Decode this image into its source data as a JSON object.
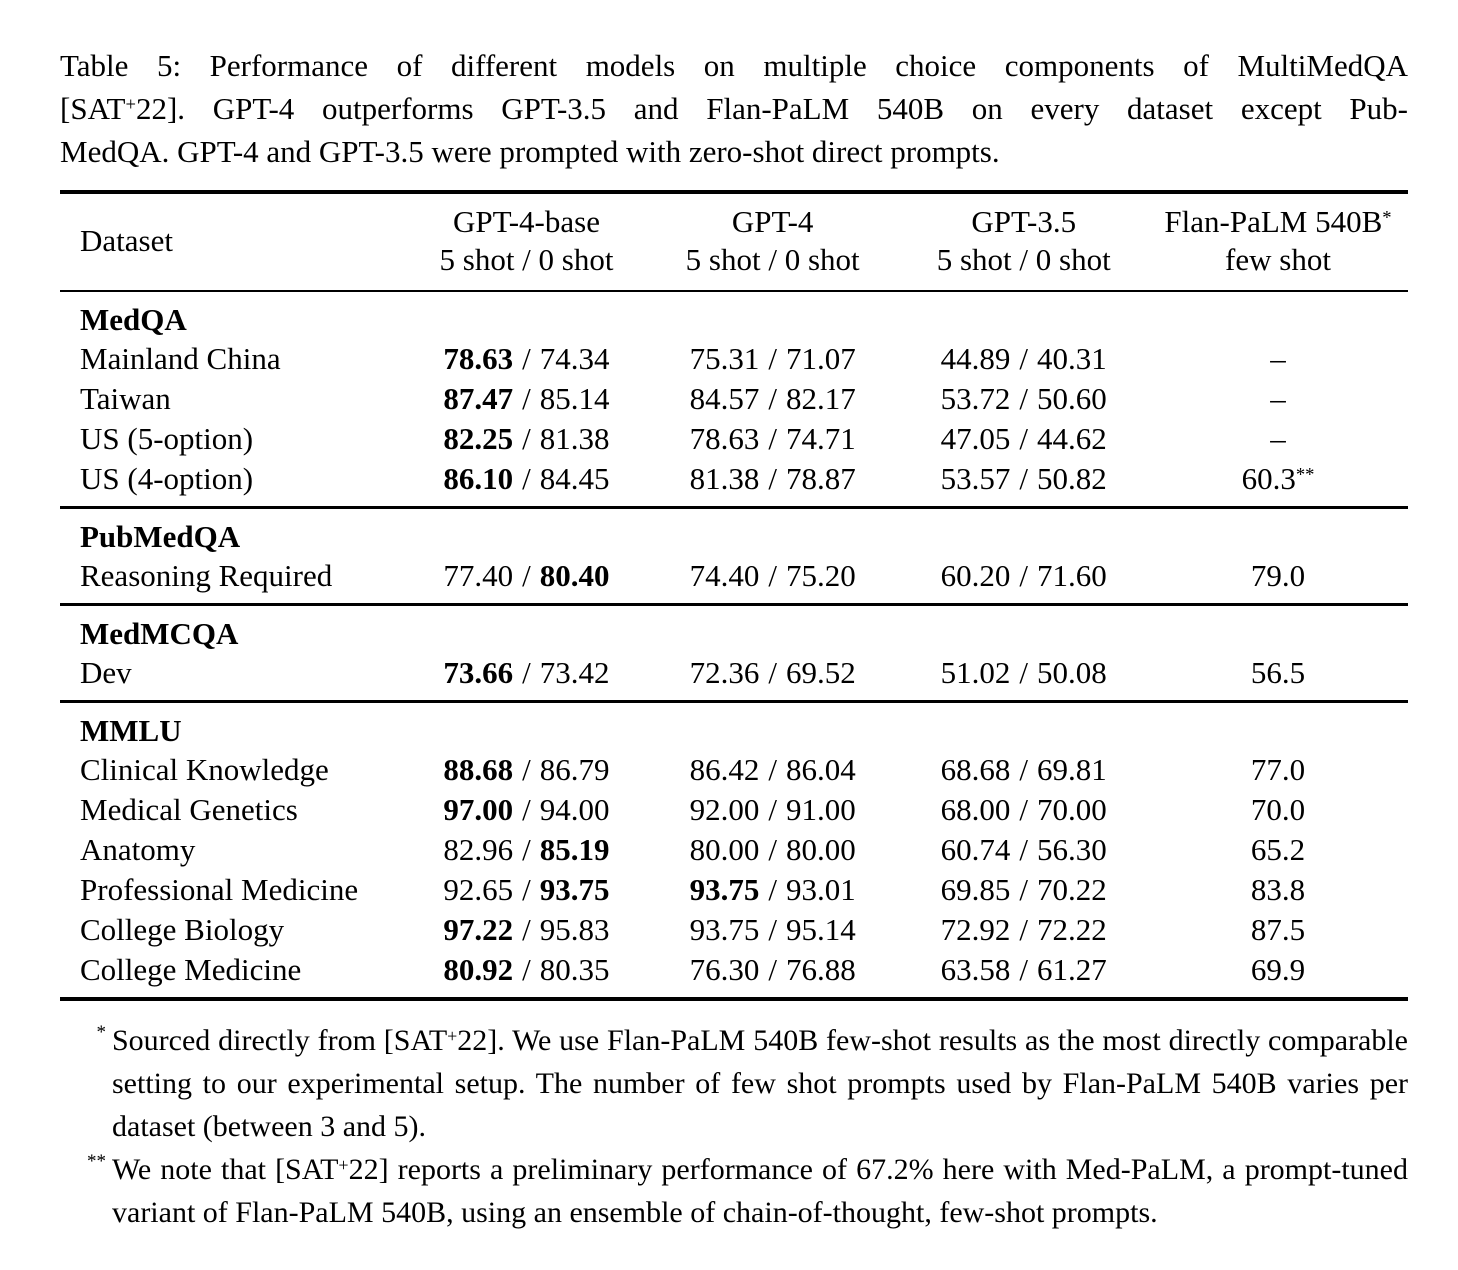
{
  "colors": {
    "background": "#ffffff",
    "text": "#000000",
    "rule": "#000000"
  },
  "caption": {
    "line1": "Table 5: Performance of different models on multiple choice components of MultiMedQA",
    "line2_pre": "[SAT",
    "line2_sup": "+",
    "line2_post": "22]. GPT-4 outperforms GPT-3.5 and Flan-PaLM 540B on every dataset except Pub-",
    "line3": "MedQA. GPT-4 and GPT-3.5 were prompted with zero-shot direct prompts."
  },
  "table": {
    "slash": "/",
    "header": {
      "dataset_label": "Dataset",
      "columns": [
        {
          "model": "GPT-4-base",
          "shots": "5 shot / 0 shot"
        },
        {
          "model": "GPT-4",
          "shots": "5 shot / 0 shot"
        },
        {
          "model": "GPT-3.5",
          "shots": "5 shot / 0 shot"
        },
        {
          "model": "Flan-PaLM 540B",
          "sup": "*",
          "shots": "few shot"
        }
      ]
    },
    "sections": [
      {
        "title": "MedQA",
        "rows": [
          {
            "label": "Mainland China",
            "c1": [
              "78.63",
              "74.34"
            ],
            "c2": [
              "75.31",
              "71.07"
            ],
            "c3": [
              "44.89",
              "40.31"
            ],
            "c4": "–"
          },
          {
            "label": "Taiwan",
            "c1": [
              "87.47",
              "85.14"
            ],
            "c2": [
              "84.57",
              "82.17"
            ],
            "c3": [
              "53.72",
              "50.60"
            ],
            "c4": "–"
          },
          {
            "label": "US (5-option)",
            "c1": [
              "82.25",
              "81.38"
            ],
            "c2": [
              "78.63",
              "74.71"
            ],
            "c3": [
              "47.05",
              "44.62"
            ],
            "c4": "–"
          },
          {
            "label": "US (4-option)",
            "c1": [
              "86.10",
              "84.45"
            ],
            "c2": [
              "81.38",
              "78.87"
            ],
            "c3": [
              "53.57",
              "50.82"
            ],
            "c4": "60.3",
            "c4sup": "**"
          }
        ]
      },
      {
        "title": "PubMedQA",
        "rows": [
          {
            "label": "Reasoning Required",
            "c1": [
              "77.40",
              "80.40"
            ],
            "c2": [
              "74.40",
              "75.20"
            ],
            "c3": [
              "60.20",
              "71.60"
            ],
            "c4": "79.0"
          }
        ]
      },
      {
        "title": "MedMCQA",
        "rows": [
          {
            "label": "Dev",
            "c1": [
              "73.66",
              "73.42"
            ],
            "c2": [
              "72.36",
              "69.52"
            ],
            "c3": [
              "51.02",
              "50.08"
            ],
            "c4": "56.5"
          }
        ]
      },
      {
        "title": "MMLU",
        "rows": [
          {
            "label": "Clinical Knowledge",
            "c1": [
              "88.68",
              "86.79"
            ],
            "c2": [
              "86.42",
              "86.04"
            ],
            "c3": [
              "68.68",
              "69.81"
            ],
            "c4": "77.0"
          },
          {
            "label": "Medical Genetics",
            "c1": [
              "97.00",
              "94.00"
            ],
            "c2": [
              "92.00",
              "91.00"
            ],
            "c3": [
              "68.00",
              "70.00"
            ],
            "c4": "70.0"
          },
          {
            "label": "Anatomy",
            "c1": [
              "82.96",
              "85.19"
            ],
            "c2": [
              "80.00",
              "80.00"
            ],
            "c3": [
              "60.74",
              "56.30"
            ],
            "c4": "65.2"
          },
          {
            "label": "Professional Medicine",
            "c1": [
              "92.65",
              "93.75"
            ],
            "c2": [
              "93.75",
              "93.01"
            ],
            "c3": [
              "69.85",
              "70.22"
            ],
            "c4": "83.8"
          },
          {
            "label": "College Biology",
            "c1": [
              "97.22",
              "95.83"
            ],
            "c2": [
              "93.75",
              "95.14"
            ],
            "c3": [
              "72.92",
              "72.22"
            ],
            "c4": "87.5"
          },
          {
            "label": "College Medicine",
            "c1": [
              "80.92",
              "80.35"
            ],
            "c2": [
              "76.30",
              "76.88"
            ],
            "c3": [
              "63.58",
              "61.27"
            ],
            "c4": "69.9"
          }
        ]
      }
    ]
  },
  "footnotes": [
    {
      "marker": "*",
      "text_pre": "Sourced directly from [SAT",
      "text_sup": "+",
      "text_post": "22]. We use Flan-PaLM 540B few-shot results as the most directly comparable setting to our experimental setup. The number of few shot prompts used by Flan-PaLM 540B varies per dataset (between 3 and 5)."
    },
    {
      "marker": "**",
      "text_pre": "We note that [SAT",
      "text_sup": "+",
      "text_post": "22] reports a preliminary performance of 67.2% here with Med-PaLM, a prompt-tuned variant of Flan-PaLM 540B, using an ensemble of chain-of-thought, few-shot prompts."
    }
  ]
}
